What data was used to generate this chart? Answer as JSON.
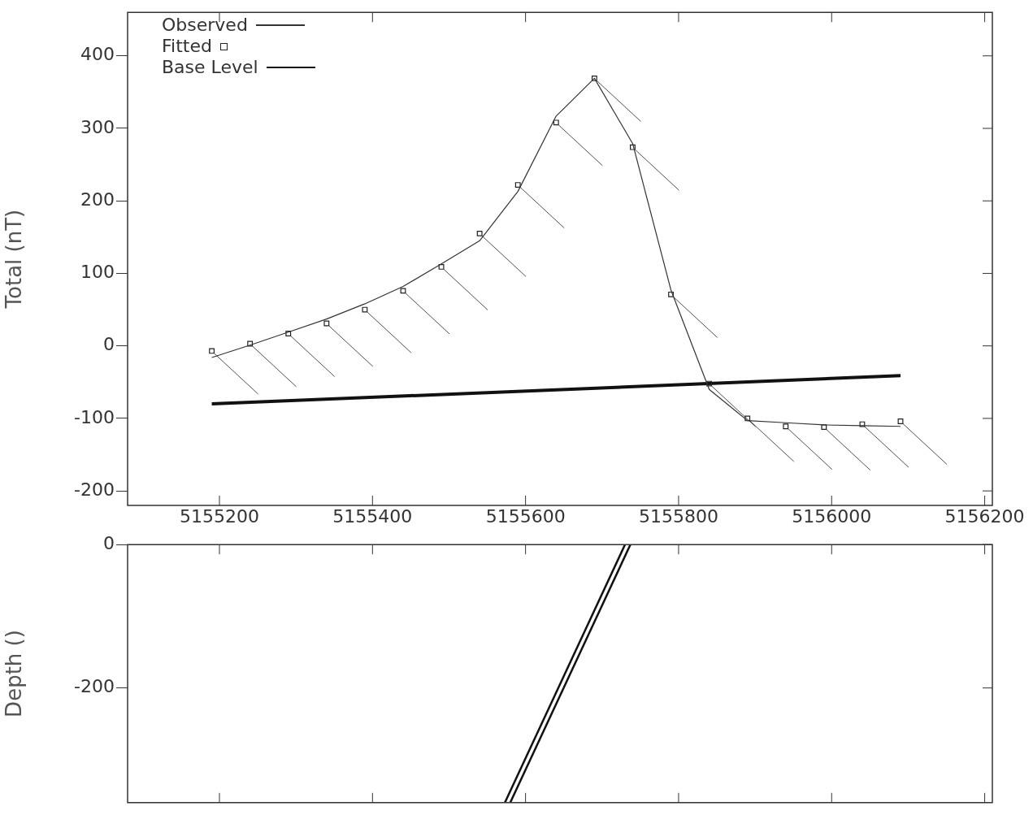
{
  "chart_data": [
    {
      "type": "line",
      "ylabel": "Total (nT)",
      "xlim": [
        5155080,
        5156210
      ],
      "xticks": [
        5155200,
        5155400,
        5155600,
        5155800,
        5156000,
        5156200
      ],
      "ylim": [
        -220,
        460
      ],
      "yticks": [
        -200,
        -100,
        0,
        100,
        200,
        300,
        400
      ],
      "legend": "top left",
      "grid": false,
      "series": [
        {
          "name": "Observed",
          "type": "line",
          "color": "#333333",
          "marker": "none",
          "line_style": "solid",
          "x": [
            5155190,
            5155240,
            5155290,
            5155340,
            5155390,
            5155440,
            5155490,
            5155540,
            5155590,
            5155640,
            5155690,
            5155740,
            5155790,
            5155840,
            5155890,
            5155940,
            5155990,
            5156040,
            5156090
          ],
          "values": [
            -16,
            1,
            19,
            37,
            58,
            82,
            113,
            145,
            213,
            317,
            369,
            279,
            77,
            -60,
            -103,
            -106,
            -109,
            -110,
            -111
          ]
        },
        {
          "name": "Fitted",
          "type": "scatter",
          "color": "#222222",
          "marker": "square",
          "x": [
            5155190,
            5155240,
            5155290,
            5155340,
            5155390,
            5155440,
            5155490,
            5155540,
            5155590,
            5155640,
            5155690,
            5155740,
            5155790,
            5155840,
            5155890,
            5155940,
            5155990,
            5156040,
            5156090
          ],
          "values": [
            -7,
            3,
            17,
            31,
            50,
            76,
            109,
            155,
            222,
            308,
            369,
            274,
            71,
            -52,
            -100,
            -111,
            -112,
            -108,
            -104
          ]
        },
        {
          "name": "Base Level",
          "type": "line",
          "color": "#111111",
          "marker": "none",
          "line_style": "solid",
          "x": [
            5155190,
            5156090
          ],
          "values": [
            -80,
            -41
          ]
        }
      ]
    },
    {
      "type": "line",
      "ylabel": "Depth ()",
      "xlim": [
        5155080,
        5156210
      ],
      "xticks": [
        5155200,
        5155400,
        5155600,
        5155800,
        5156000,
        5156200
      ],
      "ylim": [
        -360,
        0
      ],
      "yticks": [
        -200,
        0
      ],
      "tick_labels": "y",
      "grid": false,
      "series": [
        {
          "type": "line",
          "color": "#111111",
          "marker": "none",
          "line_style": "solid",
          "x": [
            5155730,
            5155573
          ],
          "values": [
            0,
            -360
          ]
        },
        {
          "type": "line",
          "color": "#111111",
          "marker": "none",
          "line_style": "solid",
          "x": [
            5155737,
            5155580
          ],
          "values": [
            0,
            -360
          ]
        }
      ]
    }
  ]
}
